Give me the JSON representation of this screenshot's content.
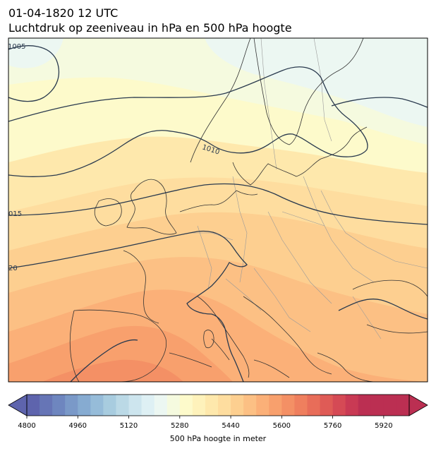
{
  "title": {
    "date": "01-04-1820 12 UTC",
    "description": "Luchtdruk op zeeniveau in hPa en 500 hPa hoogte"
  },
  "isobar_labels": {
    "p1005": "1005",
    "p1010": "1010",
    "p1015": "015",
    "p1020": "20"
  },
  "colorbar": {
    "label": "500 hPa hoogte in meter",
    "min": 4800,
    "max": 6000,
    "step": 40,
    "ticks": [
      "4800",
      "4960",
      "5120",
      "5280",
      "5440",
      "5600",
      "5760",
      "5920"
    ],
    "colors": [
      "#5e64ad",
      "#6675b6",
      "#6e86bf",
      "#7a99c8",
      "#86abd1",
      "#96bcd9",
      "#a8ccdf",
      "#bbd9e6",
      "#cde5ee",
      "#def0f4",
      "#ecf7f2",
      "#f5fadf",
      "#fdfacb",
      "#fef2bb",
      "#fee8ac",
      "#fedd9f",
      "#fdcf90",
      "#fcc084",
      "#fbb078",
      "#f8a06d",
      "#f49065",
      "#ef7f5e",
      "#e86d59",
      "#df5b56",
      "#d54a55",
      "#c93a54",
      "#bb2f52"
    ]
  },
  "colors": {
    "isobar": "#2a3a4e",
    "coastline": "#333333",
    "borders": "#9a9a9a"
  }
}
